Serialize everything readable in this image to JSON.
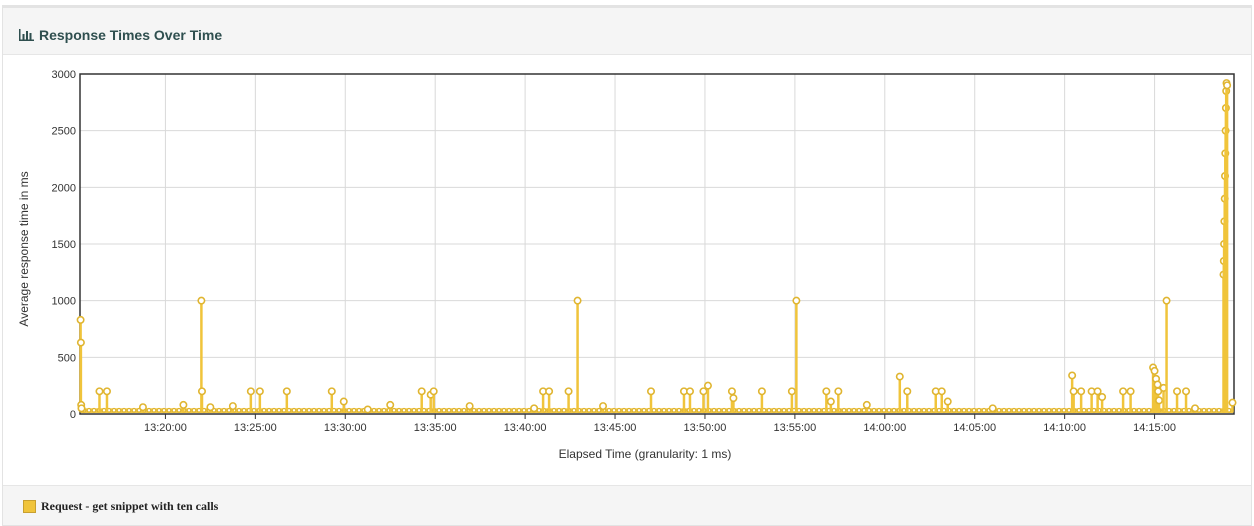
{
  "panel": {
    "title": "Response Times Over Time",
    "icon": "bar-chart-icon"
  },
  "colors": {
    "series": "#f0c43b",
    "series_stroke": "#e0b530",
    "grid": "#d9d9d9",
    "axis": "#333333"
  },
  "chart_data": {
    "type": "line",
    "title": "",
    "xlabel": "Elapsed Time (granularity: 1 ms)",
    "ylabel": "Average response time in ms",
    "xlim": [
      "13:15:15",
      "14:19:25"
    ],
    "ylim": [
      0,
      3000
    ],
    "y_ticks": [
      0,
      500,
      1000,
      1500,
      2000,
      2500,
      3000
    ],
    "x_ticks": [
      "13:20:00",
      "13:25:00",
      "13:30:00",
      "13:35:00",
      "13:40:00",
      "13:45:00",
      "13:50:00",
      "13:55:00",
      "14:00:00",
      "14:05:00",
      "14:10:00",
      "14:15:00"
    ],
    "grid": true,
    "legend_position": "bottom-left",
    "series": [
      {
        "name": "Request - get snippet with ten calls",
        "baseline": 15,
        "points": [
          [
            "13:15:17",
            830
          ],
          [
            "13:15:18",
            630
          ],
          [
            "13:15:19",
            80
          ],
          [
            "13:15:20",
            50
          ],
          [
            "13:16:20",
            200
          ],
          [
            "13:16:45",
            200
          ],
          [
            "13:18:45",
            60
          ],
          [
            "13:21:00",
            80
          ],
          [
            "13:22:00",
            1000
          ],
          [
            "13:22:02",
            200
          ],
          [
            "13:22:30",
            60
          ],
          [
            "13:23:45",
            70
          ],
          [
            "13:24:45",
            200
          ],
          [
            "13:25:15",
            200
          ],
          [
            "13:26:45",
            200
          ],
          [
            "13:29:15",
            200
          ],
          [
            "13:29:55",
            110
          ],
          [
            "13:31:15",
            40
          ],
          [
            "13:32:30",
            80
          ],
          [
            "13:34:15",
            200
          ],
          [
            "13:34:45",
            170
          ],
          [
            "13:34:55",
            200
          ],
          [
            "13:36:55",
            70
          ],
          [
            "13:40:30",
            50
          ],
          [
            "13:41:00",
            200
          ],
          [
            "13:41:20",
            200
          ],
          [
            "13:42:25",
            200
          ],
          [
            "13:42:55",
            1000
          ],
          [
            "13:44:20",
            70
          ],
          [
            "13:47:00",
            200
          ],
          [
            "13:48:50",
            200
          ],
          [
            "13:49:10",
            200
          ],
          [
            "13:49:55",
            200
          ],
          [
            "13:50:10",
            250
          ],
          [
            "13:51:30",
            200
          ],
          [
            "13:51:35",
            140
          ],
          [
            "13:53:10",
            200
          ],
          [
            "13:54:50",
            200
          ],
          [
            "13:55:05",
            1000
          ],
          [
            "13:56:45",
            200
          ],
          [
            "13:57:00",
            110
          ],
          [
            "13:57:25",
            200
          ],
          [
            "13:59:00",
            80
          ],
          [
            "14:00:50",
            330
          ],
          [
            "14:01:15",
            200
          ],
          [
            "14:02:50",
            200
          ],
          [
            "14:03:10",
            200
          ],
          [
            "14:03:30",
            110
          ],
          [
            "14:06:00",
            50
          ],
          [
            "14:10:25",
            340
          ],
          [
            "14:10:30",
            200
          ],
          [
            "14:10:55",
            200
          ],
          [
            "14:11:30",
            200
          ],
          [
            "14:11:50",
            200
          ],
          [
            "14:12:05",
            150
          ],
          [
            "14:13:15",
            200
          ],
          [
            "14:13:40",
            200
          ],
          [
            "14:14:55",
            410
          ],
          [
            "14:15:00",
            380
          ],
          [
            "14:15:05",
            310
          ],
          [
            "14:15:10",
            260
          ],
          [
            "14:15:12",
            200
          ],
          [
            "14:15:15",
            120
          ],
          [
            "14:15:30",
            230
          ],
          [
            "14:15:40",
            1000
          ],
          [
            "14:16:15",
            200
          ],
          [
            "14:16:45",
            200
          ],
          [
            "14:17:15",
            50
          ],
          [
            "14:18:50",
            1230
          ],
          [
            "14:18:51",
            1350
          ],
          [
            "14:18:52",
            1500
          ],
          [
            "14:18:53",
            1700
          ],
          [
            "14:18:54",
            1900
          ],
          [
            "14:18:55",
            2100
          ],
          [
            "14:18:56",
            2300
          ],
          [
            "14:18:57",
            2500
          ],
          [
            "14:18:58",
            2700
          ],
          [
            "14:18:59",
            2850
          ],
          [
            "14:19:00",
            2920
          ],
          [
            "14:19:02",
            2900
          ],
          [
            "14:19:20",
            100
          ]
        ]
      }
    ]
  }
}
